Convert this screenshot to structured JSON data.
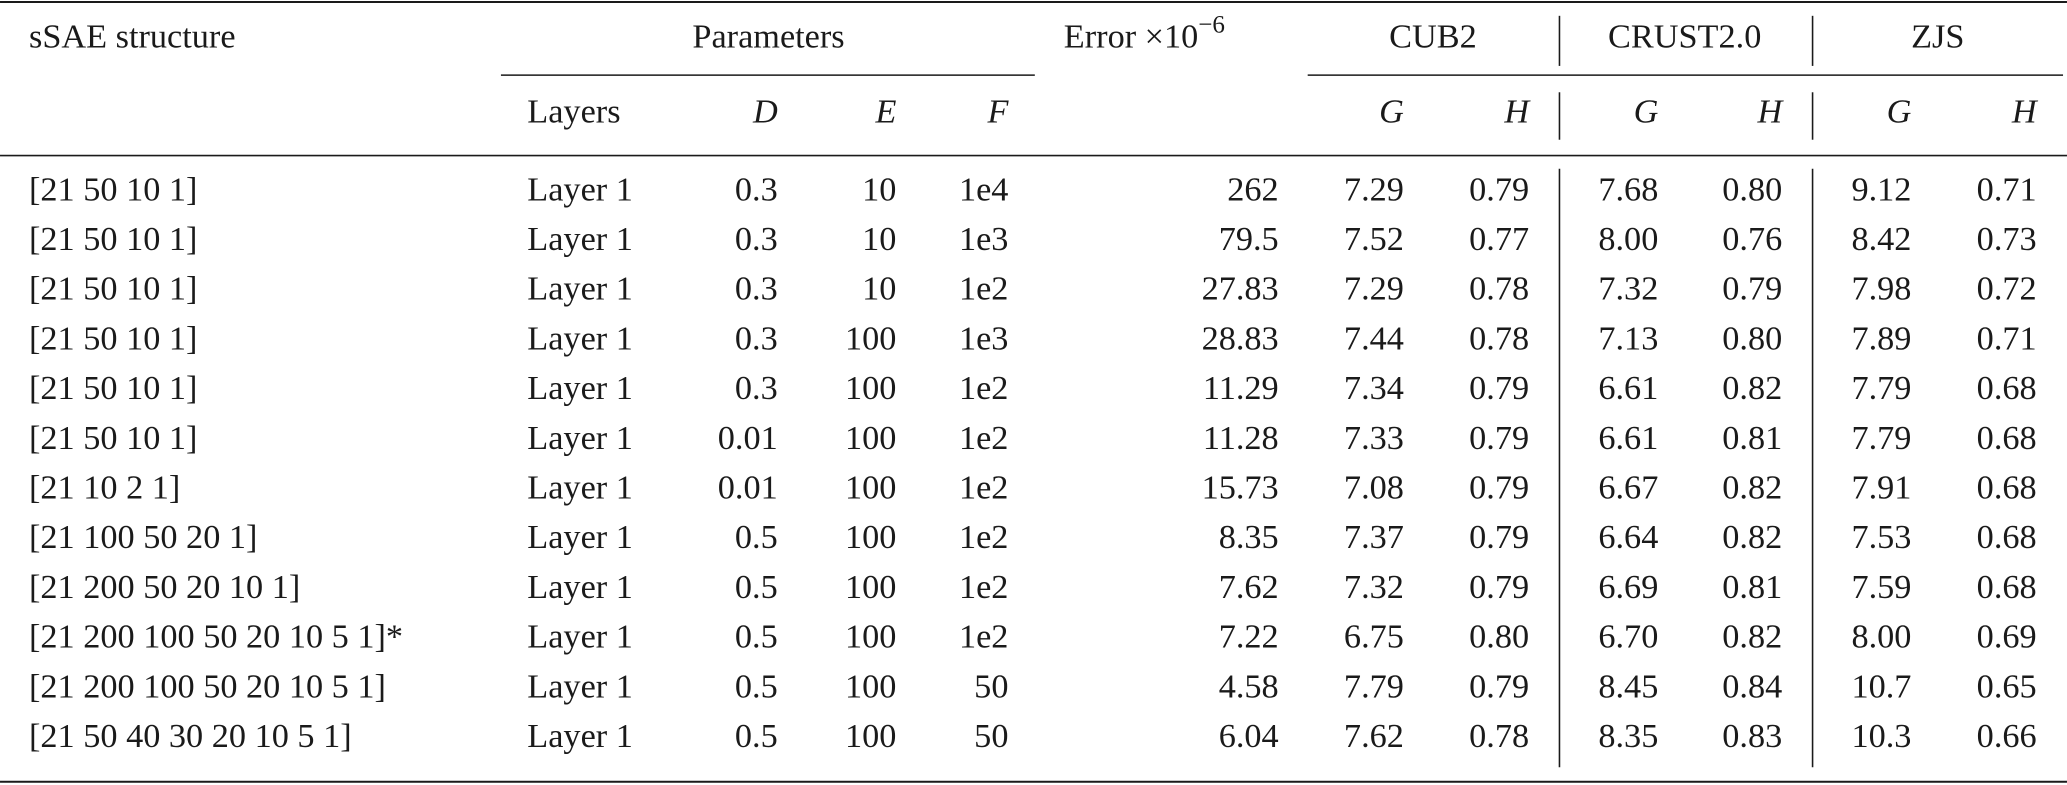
{
  "table": {
    "header": {
      "structure": "sSAE structure",
      "parameters": "Parameters",
      "error": "Error ×10",
      "error_exponent": "−6",
      "groups": [
        "CUB2",
        "CRUST2.0",
        "ZJS"
      ],
      "subheaders": [
        "Layers",
        "D",
        "E",
        "F",
        "G",
        "H",
        "G",
        "H",
        "G",
        "H"
      ]
    },
    "rows": [
      [
        "[21 50 10 1]",
        "Layer 1",
        "0.3",
        "10",
        "1e4",
        "262",
        "7.29",
        "0.79",
        "7.68",
        "0.80",
        "9.12",
        "0.71"
      ],
      [
        "[21 50 10 1]",
        "Layer 1",
        "0.3",
        "10",
        "1e3",
        "79.5",
        "7.52",
        "0.77",
        "8.00",
        "0.76",
        "8.42",
        "0.73"
      ],
      [
        "[21 50 10 1]",
        "Layer 1",
        "0.3",
        "10",
        "1e2",
        "27.83",
        "7.29",
        "0.78",
        "7.32",
        "0.79",
        "7.98",
        "0.72"
      ],
      [
        "[21 50 10 1]",
        "Layer 1",
        "0.3",
        "100",
        "1e3",
        "28.83",
        "7.44",
        "0.78",
        "7.13",
        "0.80",
        "7.89",
        "0.71"
      ],
      [
        "[21 50 10 1]",
        "Layer 1",
        "0.3",
        "100",
        "1e2",
        "11.29",
        "7.34",
        "0.79",
        "6.61",
        "0.82",
        "7.79",
        "0.68"
      ],
      [
        "[21 50 10 1]",
        "Layer 1",
        "0.01",
        "100",
        "1e2",
        "11.28",
        "7.33",
        "0.79",
        "6.61",
        "0.81",
        "7.79",
        "0.68"
      ],
      [
        "[21 10 2 1]",
        "Layer 1",
        "0.01",
        "100",
        "1e2",
        "15.73",
        "7.08",
        "0.79",
        "6.67",
        "0.82",
        "7.91",
        "0.68"
      ],
      [
        "[21 100 50 20 1]",
        "Layer 1",
        "0.5",
        "100",
        "1e2",
        "8.35",
        "7.37",
        "0.79",
        "6.64",
        "0.82",
        "7.53",
        "0.68"
      ],
      [
        "[21 200 50 20 10 1]",
        "Layer 1",
        "0.5",
        "100",
        "1e2",
        "7.62",
        "7.32",
        "0.79",
        "6.69",
        "0.81",
        "7.59",
        "0.68"
      ],
      [
        "[21 200 100 50 20 10 5 1]*",
        "Layer 1",
        "0.5",
        "100",
        "1e2",
        "7.22",
        "6.75",
        "0.80",
        "6.70",
        "0.82",
        "8.00",
        "0.69"
      ],
      [
        "[21 200 100 50 20 10 5 1]",
        "Layer 1",
        "0.5",
        "100",
        "50",
        "4.58",
        "7.79",
        "0.79",
        "8.45",
        "0.84",
        "10.7",
        "0.65"
      ],
      [
        "[21 50 40 30 20 10 5 1]",
        "Layer 1",
        "0.5",
        "100",
        "50",
        "6.04",
        "7.62",
        "0.78",
        "8.35",
        "0.83",
        "10.3",
        "0.66"
      ]
    ]
  }
}
